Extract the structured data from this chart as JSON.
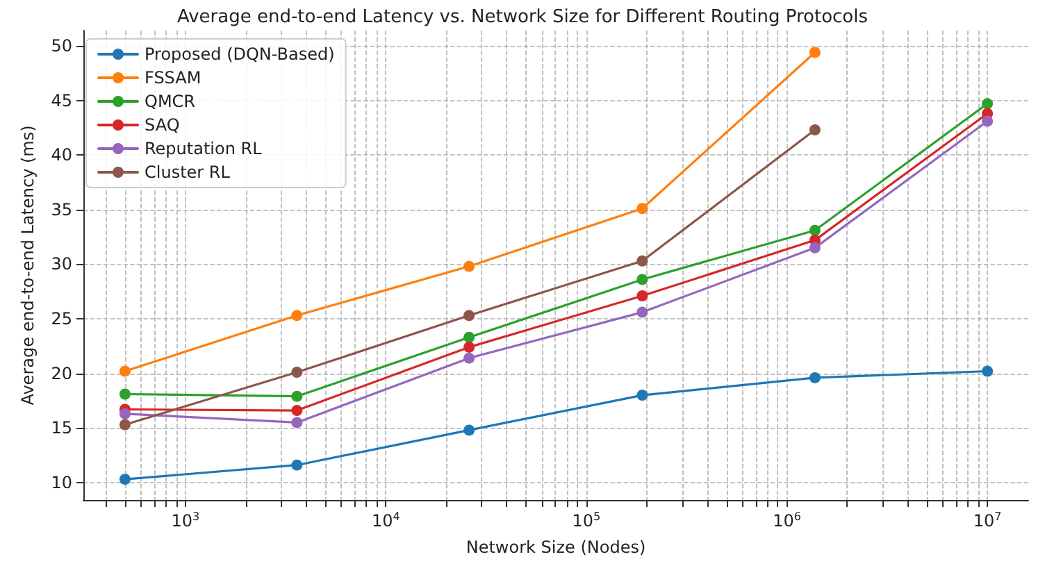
{
  "chart_data": {
    "type": "line",
    "title": "Average end-to-end Latency vs. Network Size for Different Routing Protocols",
    "xlabel": "Network Size (Nodes)",
    "ylabel": "Average end-to-end Latency (ms)",
    "x": [
      500,
      3600,
      26000,
      190000,
      1380000,
      10000000
    ],
    "series": [
      {
        "name": "Proposed (DQN-Based)",
        "color": "#1f77b4",
        "values": [
          10.3,
          11.6,
          14.8,
          18.0,
          19.6,
          20.2
        ]
      },
      {
        "name": "FSSAM",
        "color": "#ff7f0e",
        "values": [
          20.2,
          25.3,
          29.8,
          35.1,
          49.4,
          null
        ]
      },
      {
        "name": "QMCR",
        "color": "#2ca02c",
        "values": [
          18.1,
          17.9,
          23.3,
          28.6,
          33.1,
          44.7
        ]
      },
      {
        "name": "SAQ",
        "color": "#d62728",
        "values": [
          16.7,
          16.6,
          22.4,
          27.1,
          32.2,
          43.8
        ]
      },
      {
        "name": "Reputation RL",
        "color": "#9467bd",
        "values": [
          16.3,
          15.5,
          21.4,
          25.6,
          31.5,
          43.1
        ]
      },
      {
        "name": "Cluster RL",
        "color": "#8c564b",
        "values": [
          15.3,
          20.1,
          25.3,
          30.3,
          42.3,
          null
        ]
      }
    ],
    "log": "x",
    "xlim": [
      310,
      16000000
    ],
    "xticks": [
      {
        "value": 400,
        "label": null
      },
      {
        "value": 500,
        "label": null
      },
      {
        "value": 600,
        "label": null
      },
      {
        "value": 700,
        "label": null
      },
      {
        "value": 800,
        "label": null
      },
      {
        "value": 900,
        "label": null
      },
      {
        "value": 1000,
        "label": "10$^{3}$"
      },
      {
        "value": 2000,
        "label": null
      },
      {
        "value": 3000,
        "label": null
      },
      {
        "value": 4000,
        "label": null
      },
      {
        "value": 5000,
        "label": null
      },
      {
        "value": 6000,
        "label": null
      },
      {
        "value": 7000,
        "label": null
      },
      {
        "value": 8000,
        "label": null
      },
      {
        "value": 9000,
        "label": null
      },
      {
        "value": 10000,
        "label": "10$^{4}$"
      },
      {
        "value": 20000,
        "label": null
      },
      {
        "value": 30000,
        "label": null
      },
      {
        "value": 40000,
        "label": null
      },
      {
        "value": 50000,
        "label": null
      },
      {
        "value": 60000,
        "label": null
      },
      {
        "value": 70000,
        "label": null
      },
      {
        "value": 80000,
        "label": null
      },
      {
        "value": 90000,
        "label": null
      },
      {
        "value": 100000,
        "label": "10$^{5}$"
      },
      {
        "value": 200000,
        "label": null
      },
      {
        "value": 300000,
        "label": null
      },
      {
        "value": 400000,
        "label": null
      },
      {
        "value": 500000,
        "label": null
      },
      {
        "value": 600000,
        "label": null
      },
      {
        "value": 700000,
        "label": null
      },
      {
        "value": 800000,
        "label": null
      },
      {
        "value": 900000,
        "label": null
      },
      {
        "value": 1000000,
        "label": "10$^{6}$"
      },
      {
        "value": 2000000,
        "label": null
      },
      {
        "value": 3000000,
        "label": null
      },
      {
        "value": 4000000,
        "label": null
      },
      {
        "value": 5000000,
        "label": null
      },
      {
        "value": 6000000,
        "label": null
      },
      {
        "value": 7000000,
        "label": null
      },
      {
        "value": 8000000,
        "label": null
      },
      {
        "value": 9000000,
        "label": null
      },
      {
        "value": 10000000,
        "label": "10$^{7}$"
      }
    ],
    "ylim": [
      8.4,
      51.4
    ],
    "yticks": [
      10,
      15,
      20,
      25,
      30,
      35,
      40,
      45,
      50
    ],
    "grid": true,
    "legend": "top left",
    "marker": "circle",
    "line_style": "solid"
  }
}
